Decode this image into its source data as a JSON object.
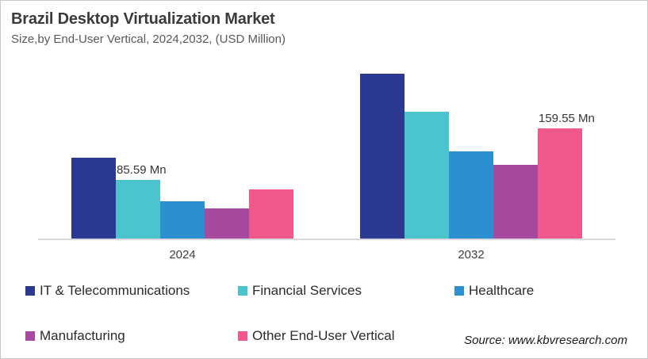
{
  "header": {
    "title": "Brazil Desktop Virtualization Market",
    "subtitle": "Size,by End-User Vertical, 2024,2032, (USD Million)"
  },
  "source_note": "Source: www.kbvresearch.com",
  "colors": {
    "it_telecommunications": "#2B3990",
    "financial_services": "#4CC4CE",
    "healthcare": "#2B8FD0",
    "manufacturing": "#A74A9E",
    "other_end_user_vertical": "#F0578B",
    "axis_line": "#D9D9D9",
    "title_text": "#3B3B3B",
    "subtitle_text": "#595959"
  },
  "chart_data": {
    "type": "bar",
    "title": "Brazil Desktop Virtualization Market",
    "subtitle": "Size,by End-User Vertical, 2024,2032, (USD Million)",
    "unit": "USD Million",
    "categories": [
      "2024",
      "2032"
    ],
    "series": [
      {
        "name": "IT & Telecommunications",
        "color": "#2B3990",
        "values": [
          117.6,
          238.6
        ]
      },
      {
        "name": "Financial Services",
        "color": "#4CC4CE",
        "values": [
          85.59,
          183.8
        ]
      },
      {
        "name": "Healthcare",
        "color": "#2B8FD0",
        "values": [
          54.5,
          126.7
        ]
      },
      {
        "name": "Manufacturing",
        "color": "#A74A9E",
        "values": [
          44.2,
          107.3
        ]
      },
      {
        "name": "Other End-User Vertical",
        "color": "#F0578B",
        "values": [
          71.6,
          159.55
        ]
      }
    ],
    "data_labels": [
      {
        "series_index": 1,
        "category_index": 0,
        "text": "85.59 Mn"
      },
      {
        "series_index": 4,
        "category_index": 1,
        "text": "159.55 Mn"
      }
    ],
    "xlabel": "",
    "ylabel": "",
    "ylim": [
      0,
      260
    ],
    "grid": false,
    "value_axis_visible": false,
    "legend_position": "bottom"
  }
}
